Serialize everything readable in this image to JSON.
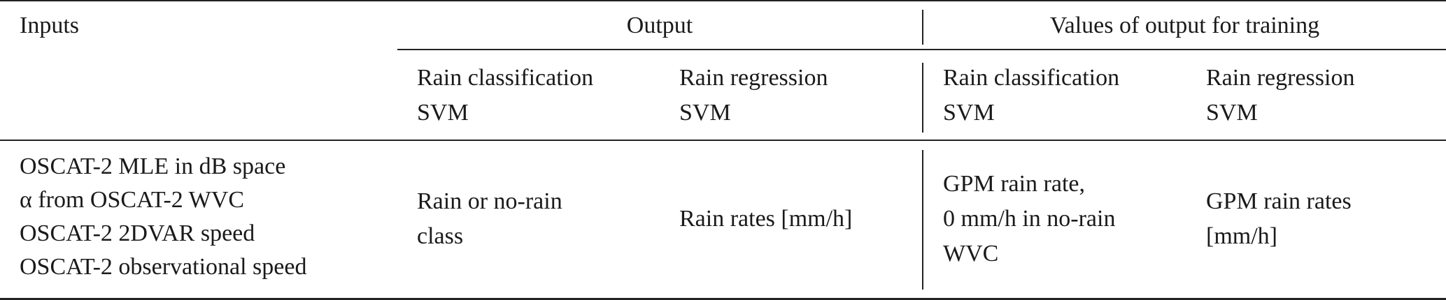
{
  "table": {
    "header_top": {
      "inputs": "Inputs",
      "output": "Output",
      "training": "Values of output for training"
    },
    "header_sub": {
      "out_class_l1": "Rain classification",
      "out_class_l2": "SVM",
      "out_reg_l1": "Rain regression",
      "out_reg_l2": "SVM",
      "tr_class_l1": "Rain classification",
      "tr_class_l2": "SVM",
      "tr_reg_l1": "Rain regression",
      "tr_reg_l2": "SVM"
    },
    "row": {
      "inputs": [
        "OSCAT-2 MLE in dB space",
        "α from OSCAT-2 WVC",
        "OSCAT-2 2DVAR speed",
        "OSCAT-2 observational speed"
      ],
      "out_class": [
        "Rain or no-rain",
        "class"
      ],
      "out_reg": [
        "Rain rates [mm/h]"
      ],
      "tr_class": [
        "GPM rain rate,",
        "0 mm/h in no-rain",
        "WVC"
      ],
      "tr_reg": [
        "GPM rain rates",
        "[mm/h]"
      ]
    }
  }
}
